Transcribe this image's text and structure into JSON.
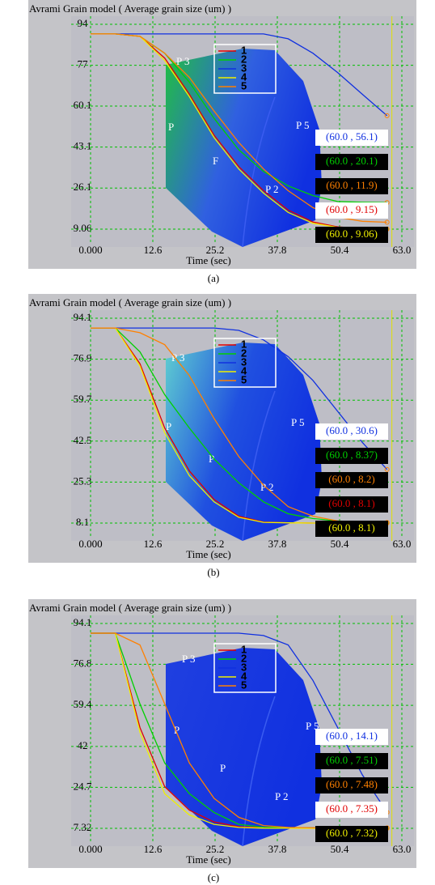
{
  "chart_data": [
    {
      "type": "line",
      "title": "Avrami Grain model ( Average grain size (um) )",
      "x_label": "Time (sec)",
      "caption": "(a)",
      "x": [
        0,
        5,
        10,
        15,
        20,
        25,
        30,
        35,
        40,
        45,
        50,
        55,
        60
      ],
      "xlim": [
        0,
        63
      ],
      "xticks": [
        {
          "value": 0,
          "label": "0.000"
        },
        12.6,
        25.2,
        37.8,
        50.4,
        {
          "value": 63,
          "label": "63.0"
        }
      ],
      "ylim": [
        9.06,
        94
      ],
      "yticks": [
        94,
        77,
        60.1,
        43.1,
        26.1,
        9.06
      ],
      "grid": true,
      "legend": "top-center",
      "annotations": [
        "P 3",
        "P",
        "F",
        "P 5",
        "P 2"
      ],
      "series": [
        {
          "name": "1",
          "color": "#e00000",
          "label_background": "#ffffff",
          "values": [
            90,
            90,
            89,
            80,
            65,
            48,
            35,
            25,
            17,
            12,
            10,
            9.3,
            9.15
          ],
          "value_labels": [
            null,
            null,
            null,
            null,
            null,
            null,
            null,
            null,
            null,
            null,
            null,
            null,
            "(60.0 , 9.15)"
          ]
        },
        {
          "name": "2",
          "color": "#00d000",
          "label_background": "#000000",
          "values": [
            90,
            90,
            89,
            82,
            70,
            55,
            42,
            33,
            27,
            23,
            20.5,
            20.2,
            20.1
          ],
          "value_labels": [
            null,
            null,
            null,
            null,
            null,
            null,
            null,
            null,
            null,
            null,
            null,
            null,
            "(60.0 , 20.1)"
          ]
        },
        {
          "name": "3",
          "color": "#1030e0",
          "label_background": "#ffffff",
          "values": [
            90,
            90,
            90,
            90,
            90,
            90,
            90,
            90,
            88,
            82,
            74,
            65,
            56.1
          ],
          "value_labels": [
            null,
            null,
            null,
            null,
            null,
            null,
            null,
            null,
            null,
            null,
            null,
            null,
            "(60.0 , 56.1)"
          ]
        },
        {
          "name": "4",
          "color": "#f0f000",
          "label_background": "#000000",
          "values": [
            90,
            90,
            89,
            79,
            64,
            47,
            34,
            24,
            16,
            11.5,
            9.8,
            9.2,
            9.06
          ],
          "value_labels": [
            null,
            null,
            null,
            null,
            null,
            null,
            null,
            null,
            null,
            null,
            null,
            null,
            "(60.0 , 9.06)"
          ]
        },
        {
          "name": "5",
          "color": "#ff8000",
          "label_background": "#000000",
          "values": [
            90,
            90,
            89,
            82,
            72,
            58,
            45,
            34,
            25,
            18,
            14,
            12.3,
            11.9
          ],
          "value_labels": [
            null,
            null,
            null,
            null,
            null,
            null,
            null,
            null,
            null,
            null,
            null,
            null,
            "(60.0 , 11.9)"
          ]
        }
      ]
    },
    {
      "type": "line",
      "title": "Avrami Grain model ( Average grain size (um) )",
      "x_label": "Time (sec)",
      "caption": "(b)",
      "x": [
        0,
        5,
        10,
        15,
        20,
        25,
        30,
        35,
        40,
        45,
        50,
        55,
        60
      ],
      "xlim": [
        0,
        63
      ],
      "xticks": [
        {
          "value": 0,
          "label": "0.000"
        },
        12.6,
        25.2,
        37.8,
        50.4,
        {
          "value": 63,
          "label": "63.0"
        }
      ],
      "ylim": [
        8.1,
        94.1
      ],
      "yticks": [
        94.1,
        76.9,
        59.7,
        42.5,
        25.3,
        8.1
      ],
      "grid": true,
      "legend": "top-center",
      "annotations": [
        "P 3",
        "P",
        "P",
        "P 5",
        "P 2"
      ],
      "series": [
        {
          "name": "1",
          "color": "#e00000",
          "label_background": "#000000",
          "values": [
            90,
            90,
            75,
            48,
            30,
            18,
            11,
            8.5,
            8.2,
            8.1,
            8.1,
            8.1,
            8.1
          ],
          "value_labels": [
            null,
            null,
            null,
            null,
            null,
            null,
            null,
            null,
            null,
            null,
            null,
            null,
            "(60.0 , 8.1)"
          ]
        },
        {
          "name": "2",
          "color": "#00d000",
          "label_background": "#000000",
          "values": [
            90,
            90,
            80,
            62,
            48,
            35,
            25,
            17,
            12,
            10,
            9,
            8.5,
            8.37
          ],
          "value_labels": [
            null,
            null,
            null,
            null,
            null,
            null,
            null,
            null,
            null,
            null,
            null,
            null,
            "(60.0 , 8.37)"
          ]
        },
        {
          "name": "3",
          "color": "#1030e0",
          "label_background": "#ffffff",
          "values": [
            90,
            90,
            90,
            90,
            90,
            90,
            89,
            85,
            78,
            68,
            55,
            42,
            30.6
          ],
          "value_labels": [
            null,
            null,
            null,
            null,
            null,
            null,
            null,
            null,
            null,
            null,
            null,
            null,
            "(60.0 , 30.6)"
          ]
        },
        {
          "name": "4",
          "color": "#f0f000",
          "label_background": "#000000",
          "values": [
            90,
            90,
            74,
            46,
            28,
            17,
            10.5,
            8.4,
            8.2,
            8.1,
            8.1,
            8.1,
            8.1
          ],
          "value_labels": [
            null,
            null,
            null,
            null,
            null,
            null,
            null,
            null,
            null,
            null,
            null,
            null,
            "(60.0 , 8.1)"
          ]
        },
        {
          "name": "5",
          "color": "#ff8000",
          "label_background": "#000000",
          "values": [
            90,
            90,
            88,
            83,
            70,
            52,
            36,
            24,
            15,
            11,
            9,
            8.4,
            8.2
          ],
          "value_labels": [
            null,
            null,
            null,
            null,
            null,
            null,
            null,
            null,
            null,
            null,
            null,
            null,
            "(60.0 , 8.2)"
          ]
        }
      ]
    },
    {
      "type": "line",
      "title": "Avrami Grain model ( Average grain size (um) )",
      "x_label": "Time (sec)",
      "caption": "(c)",
      "x": [
        0,
        5,
        10,
        15,
        20,
        25,
        30,
        35,
        40,
        45,
        50,
        55,
        60
      ],
      "xlim": [
        0,
        63
      ],
      "xticks": [
        {
          "value": 0,
          "label": "0.000"
        },
        12.6,
        25.2,
        37.8,
        50.4,
        {
          "value": 63,
          "label": "63.0"
        }
      ],
      "ylim": [
        7.32,
        94.1
      ],
      "yticks": [
        94.1,
        76.8,
        59.4,
        42,
        24.7,
        7.32
      ],
      "grid": true,
      "legend": "top-center",
      "annotations": [
        "P 3",
        "P",
        "P",
        "P 5",
        "P 2"
      ],
      "series": [
        {
          "name": "1",
          "color": "#e00000",
          "label_background": "#ffffff",
          "values": [
            90,
            90,
            50,
            25,
            15,
            10,
            8,
            7.6,
            7.45,
            7.4,
            7.38,
            7.36,
            7.35
          ],
          "value_labels": [
            null,
            null,
            null,
            null,
            null,
            null,
            null,
            null,
            null,
            null,
            null,
            null,
            "(60.0 , 7.35)"
          ]
        },
        {
          "name": "2",
          "color": "#00d000",
          "label_background": "#000000",
          "values": [
            90,
            90,
            60,
            35,
            22,
            14,
            9,
            7.8,
            7.6,
            7.55,
            7.53,
            7.52,
            7.51
          ],
          "value_labels": [
            null,
            null,
            null,
            null,
            null,
            null,
            null,
            null,
            null,
            null,
            null,
            null,
            "(60.0 , 7.51)"
          ]
        },
        {
          "name": "3",
          "color": "#1030e0",
          "label_background": "#ffffff",
          "values": [
            90,
            90,
            90,
            90,
            90,
            90,
            90,
            89,
            85,
            70,
            50,
            30,
            14.1
          ],
          "value_labels": [
            null,
            null,
            null,
            null,
            null,
            null,
            null,
            null,
            null,
            null,
            null,
            null,
            "(60.0 , 14.1)"
          ]
        },
        {
          "name": "4",
          "color": "#f0f000",
          "label_background": "#000000",
          "values": [
            90,
            90,
            48,
            22,
            13,
            9,
            7.7,
            7.4,
            7.35,
            7.33,
            7.32,
            7.32,
            7.32
          ],
          "value_labels": [
            null,
            null,
            null,
            null,
            null,
            null,
            null,
            null,
            null,
            null,
            null,
            null,
            "(60.0 , 7.32)"
          ]
        },
        {
          "name": "5",
          "color": "#ff8000",
          "label_background": "#000000",
          "values": [
            90,
            90,
            85,
            60,
            35,
            20,
            12,
            8.5,
            7.7,
            7.55,
            7.5,
            7.49,
            7.48
          ],
          "value_labels": [
            null,
            null,
            null,
            null,
            null,
            null,
            null,
            null,
            null,
            null,
            null,
            null,
            "(60.0 , 7.48)"
          ]
        }
      ]
    }
  ]
}
